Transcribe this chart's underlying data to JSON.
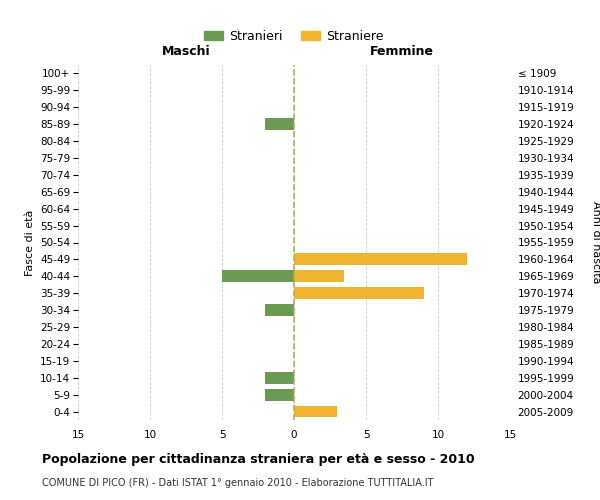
{
  "age_groups": [
    "100+",
    "95-99",
    "90-94",
    "85-89",
    "80-84",
    "75-79",
    "70-74",
    "65-69",
    "60-64",
    "55-59",
    "50-54",
    "45-49",
    "40-44",
    "35-39",
    "30-34",
    "25-29",
    "20-24",
    "15-19",
    "10-14",
    "5-9",
    "0-4"
  ],
  "birth_years": [
    "≤ 1909",
    "1910-1914",
    "1915-1919",
    "1920-1924",
    "1925-1929",
    "1930-1934",
    "1935-1939",
    "1940-1944",
    "1945-1949",
    "1950-1954",
    "1955-1959",
    "1960-1964",
    "1965-1969",
    "1970-1974",
    "1975-1979",
    "1980-1984",
    "1985-1989",
    "1990-1994",
    "1995-1999",
    "2000-2004",
    "2005-2009"
  ],
  "maschi": [
    0,
    0,
    0,
    2,
    0,
    0,
    0,
    0,
    0,
    0,
    0,
    0,
    5,
    0,
    2,
    0,
    0,
    0,
    2,
    2,
    0
  ],
  "femmine": [
    0,
    0,
    0,
    0,
    0,
    0,
    0,
    0,
    0,
    0,
    0,
    12,
    3.5,
    9,
    0,
    0,
    0,
    0,
    0,
    0,
    3
  ],
  "color_maschi": "#6b9a52",
  "color_femmine": "#f0b430",
  "title": "Popolazione per cittadinanza straniera per età e sesso - 2010",
  "subtitle": "COMUNE DI PICO (FR) - Dati ISTAT 1° gennaio 2010 - Elaborazione TUTTITALIA.IT",
  "xlabel_left": "Maschi",
  "xlabel_right": "Femmine",
  "ylabel_left": "Fasce di età",
  "ylabel_right": "Anni di nascita",
  "legend_stranieri": "Stranieri",
  "legend_straniere": "Straniere",
  "xlim": 15,
  "background_color": "#ffffff",
  "grid_color": "#cccccc"
}
